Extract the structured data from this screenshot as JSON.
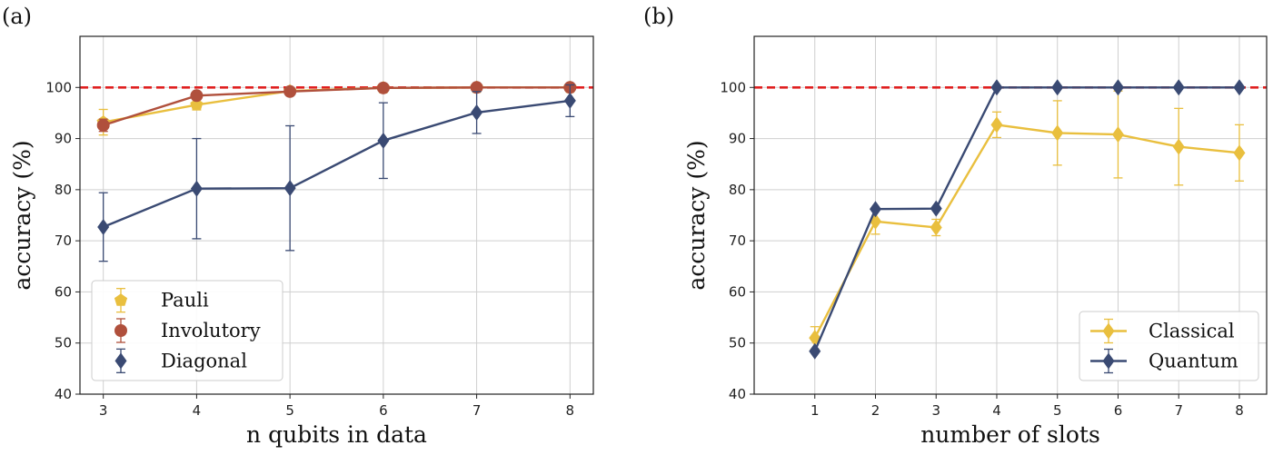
{
  "chart_data": [
    {
      "type": "line",
      "panel_label": "(a)",
      "xlabel": "n qubits in data",
      "ylabel": "accuracy (%)",
      "x": [
        3,
        4,
        5,
        6,
        7,
        8
      ],
      "xticks": [
        "3",
        "4",
        "5",
        "6",
        "7",
        "8"
      ],
      "xlim": [
        2.75,
        8.25
      ],
      "ylim": [
        40,
        110
      ],
      "yticks": [
        "40",
        "50",
        "60",
        "70",
        "80",
        "90",
        "100"
      ],
      "grid": true,
      "reference_line": {
        "y": 100,
        "color": "#e02020",
        "style": "dashed"
      },
      "legend_position": "lower-left",
      "series": [
        {
          "name": "Pauli",
          "color": "#e9bf3e",
          "marker": "pentagon",
          "values": [
            93.2,
            96.6,
            99.3,
            99.9,
            100,
            100
          ],
          "errors": [
            2.5,
            1.0,
            0.4,
            0.1,
            0,
            0
          ]
        },
        {
          "name": "Involutory",
          "color": "#b0503c",
          "marker": "circle",
          "values": [
            92.6,
            98.4,
            99.2,
            99.9,
            100,
            100
          ],
          "errors": [
            1.2,
            0.5,
            0.3,
            0.1,
            0,
            0
          ]
        },
        {
          "name": "Diagonal",
          "color": "#3a4a73",
          "marker": "diamond",
          "values": [
            72.7,
            80.2,
            80.3,
            89.6,
            95.1,
            97.4
          ],
          "errors": [
            6.7,
            9.8,
            12.2,
            7.4,
            4.1,
            3.1
          ]
        }
      ]
    },
    {
      "type": "line",
      "panel_label": "(b)",
      "xlabel": "number of slots",
      "ylabel": "accuracy (%)",
      "x": [
        1,
        2,
        3,
        4,
        5,
        6,
        7,
        8
      ],
      "xticks": [
        "1",
        "2",
        "3",
        "4",
        "5",
        "6",
        "7",
        "8"
      ],
      "xlim": [
        0,
        8.45
      ],
      "ylim": [
        40,
        110
      ],
      "yticks": [
        "40",
        "50",
        "60",
        "70",
        "80",
        "90",
        "100"
      ],
      "grid": true,
      "reference_line": {
        "y": 100,
        "color": "#e02020",
        "style": "dashed"
      },
      "legend_position": "lower-right",
      "series": [
        {
          "name": "Classical",
          "color": "#e9bf3e",
          "marker": "diamond",
          "values": [
            51,
            73.8,
            72.6,
            92.7,
            91.1,
            90.8,
            88.4,
            87.2
          ],
          "errors": [
            2.2,
            2.5,
            1.6,
            2.5,
            6.3,
            8.5,
            7.5,
            5.5
          ]
        },
        {
          "name": "Quantum",
          "color": "#3a4a73",
          "marker": "diamond",
          "values": [
            48.4,
            76.2,
            76.3,
            100,
            100,
            100,
            100,
            100
          ],
          "errors": [
            0,
            0,
            0,
            0,
            0,
            0,
            0,
            0
          ]
        }
      ]
    }
  ]
}
